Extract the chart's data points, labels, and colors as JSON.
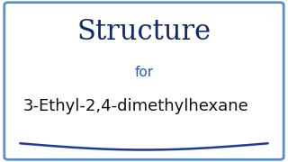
{
  "bg_color": "#ffffff",
  "border_color": "#5b8fc9",
  "title_text": "Structure",
  "title_color": "#0d2a6e",
  "title_fontsize": 22,
  "subtitle_text": "for",
  "subtitle_color": "#2a5ab5",
  "subtitle_fontsize": 11,
  "compound_text": "3-Ethyl-2,4-dimethylhexane",
  "compound_color": "#111111",
  "compound_fontsize": 13,
  "wave_color": "#1a3a9e",
  "wave_linewidth": 1.8
}
